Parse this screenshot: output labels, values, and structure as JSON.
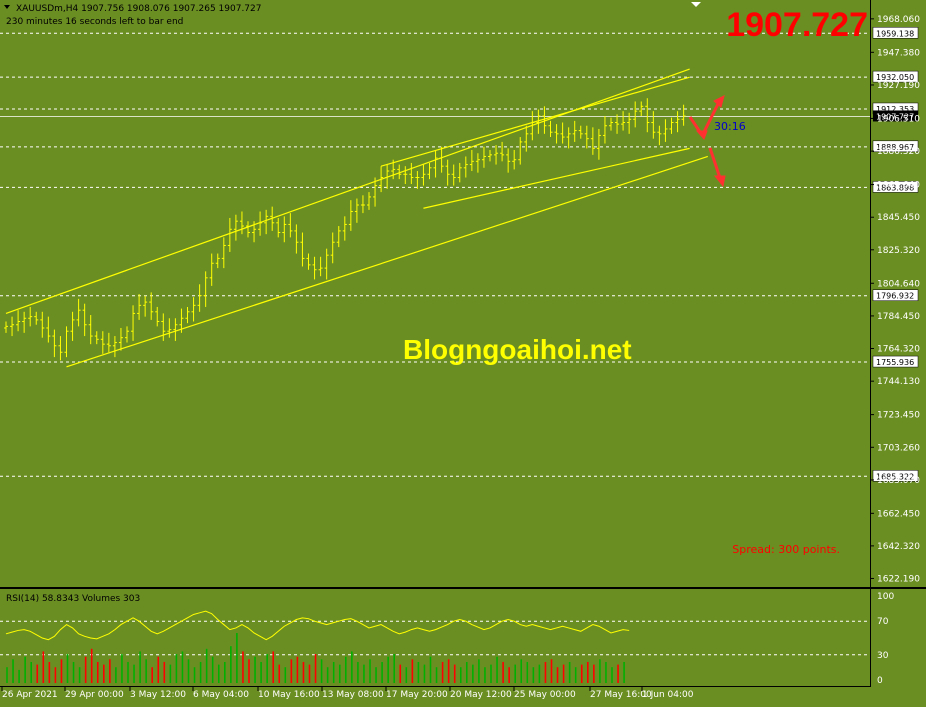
{
  "header": {
    "symbol_line": "XAUUSDm,H4  1907.756 1908.076 1907.265 1907.727",
    "timer_line": "230 minutes 16 seconds left to bar end"
  },
  "big_price": "1907.727",
  "watermark": "Blogngoaihoi.net",
  "spread_text": "Spread: 300 points.",
  "bar_timer": "30:16",
  "rsi_label": "RSI(14) 58.8343  Volumes 303",
  "colors": {
    "background": "#6b8e23",
    "candles": "#ffff00",
    "channel_lines": "#ffff00",
    "rsi_line": "#ffff00",
    "volume_up": "#00b000",
    "volume_down": "#ff0000",
    "big_price": "#ff0000",
    "arrows": "#ff3030"
  },
  "chart_data": {
    "type": "candlestick",
    "price_axis": {
      "ticks": [
        "1968.060",
        "1947.380",
        "1927.190",
        "1906.510",
        "1886.320",
        "1865.640",
        "1845.450",
        "1825.320",
        "1804.640",
        "1784.450",
        "1764.320",
        "1744.130",
        "1723.450",
        "1703.260",
        "1683.070",
        "1662.450",
        "1642.320",
        "1622.190"
      ],
      "range": [
        1620,
        1976
      ]
    },
    "level_lines": [
      {
        "label": "1959.138",
        "value": 1959.138
      },
      {
        "label": "1932.050",
        "value": 1932.05
      },
      {
        "label": "1912.353",
        "value": 1912.353
      },
      {
        "label": "1888.967",
        "value": 1888.967
      },
      {
        "label": "1863.898",
        "value": 1863.898
      },
      {
        "label": "1796.932",
        "value": 1796.932
      },
      {
        "label": "1755.936",
        "value": 1755.936
      },
      {
        "label": "1685.322",
        "value": 1685.322
      }
    ],
    "current_price": {
      "label": "1907.727",
      "value": 1907.727
    },
    "time_axis": [
      "26 Apr 2021",
      "29 Apr 00:00",
      "3 May 12:00",
      "6 May 04:00",
      "10 May 16:00",
      "13 May 08:00",
      "17 May 20:00",
      "20 May 12:00",
      "25 May 00:00",
      "27 May 16:00",
      "1 Jun 04:00"
    ],
    "closes": [
      1778,
      1779,
      1781,
      1783,
      1784,
      1782,
      1777,
      1772,
      1766,
      1762,
      1775,
      1782,
      1788,
      1779,
      1772,
      1770,
      1767,
      1766,
      1768,
      1771,
      1775,
      1786,
      1791,
      1793,
      1787,
      1781,
      1775,
      1776,
      1779,
      1783,
      1787,
      1791,
      1797,
      1808,
      1817,
      1820,
      1828,
      1838,
      1843,
      1840,
      1836,
      1838,
      1842,
      1846,
      1842,
      1836,
      1841,
      1837,
      1830,
      1820,
      1816,
      1813,
      1814,
      1822,
      1830,
      1837,
      1841,
      1849,
      1853,
      1853,
      1858,
      1865,
      1870,
      1874,
      1875,
      1872,
      1872,
      1870,
      1870,
      1872,
      1876,
      1882,
      1877,
      1872,
      1870,
      1876,
      1878,
      1880,
      1881,
      1883,
      1884,
      1885,
      1884,
      1880,
      1881,
      1892,
      1897,
      1904,
      1908,
      1902,
      1898,
      1897,
      1895,
      1897,
      1899,
      1897,
      1894,
      1888,
      1896,
      1902,
      1904,
      1903,
      1904,
      1906,
      1911,
      1914,
      1904,
      1898,
      1897,
      1900,
      1904,
      1906,
      1908
    ],
    "rsi": {
      "levels": [
        70,
        30
      ],
      "axis": [
        "100",
        "70",
        "30",
        "0"
      ],
      "range": [
        0,
        100
      ],
      "values": [
        55,
        57,
        59,
        60,
        58,
        54,
        50,
        48,
        52,
        60,
        66,
        62,
        55,
        52,
        50,
        49,
        52,
        55,
        60,
        66,
        70,
        74,
        70,
        64,
        58,
        55,
        58,
        62,
        66,
        70,
        74,
        78,
        80,
        82,
        79,
        72,
        66,
        60,
        62,
        66,
        62,
        56,
        52,
        48,
        52,
        58,
        64,
        68,
        72,
        74,
        73,
        70,
        68,
        66,
        68,
        70,
        72,
        73,
        70,
        66,
        62,
        64,
        66,
        62,
        58,
        55,
        57,
        60,
        62,
        60,
        58,
        60,
        63,
        66,
        70,
        72,
        70,
        66,
        63,
        60,
        62,
        66,
        70,
        72,
        70,
        66,
        64,
        66,
        64,
        62,
        60,
        62,
        64,
        62,
        60,
        58,
        62,
        66,
        64,
        60,
        56,
        58,
        60,
        59
      ]
    },
    "volumes": [
      30,
      45,
      25,
      50,
      40,
      35,
      60,
      40,
      30,
      45,
      55,
      40,
      30,
      50,
      65,
      40,
      35,
      45,
      30,
      55,
      40,
      35,
      60,
      45,
      30,
      50,
      40,
      35,
      55,
      60,
      45,
      30,
      40,
      65,
      50,
      35,
      40,
      70,
      95,
      60,
      45,
      50,
      40,
      55,
      60,
      35,
      30,
      45,
      50,
      40,
      35,
      55,
      45,
      30,
      40,
      35,
      50,
      60,
      40,
      35,
      45,
      30,
      40,
      50,
      55,
      35,
      30,
      45,
      40,
      35,
      50,
      30,
      40,
      45,
      35,
      30,
      40,
      35,
      45,
      30,
      35,
      50,
      40,
      30,
      35,
      45,
      40,
      30,
      35,
      40,
      45,
      30,
      35,
      40,
      30,
      35,
      40,
      35,
      45,
      40,
      30,
      35,
      40
    ],
    "channels": [
      {
        "name": "outer-upper",
        "points": [
          [
            0,
            1786
          ],
          [
            113,
            1937
          ]
        ]
      },
      {
        "name": "outer-lower",
        "points": [
          [
            10,
            1753
          ],
          [
            116,
            1883
          ]
        ]
      },
      {
        "name": "inner-upper",
        "points": [
          [
            62,
            1877
          ],
          [
            113,
            1932
          ]
        ]
      },
      {
        "name": "inner-lower",
        "points": [
          [
            69,
            1851
          ],
          [
            113,
            1888
          ]
        ]
      }
    ]
  }
}
